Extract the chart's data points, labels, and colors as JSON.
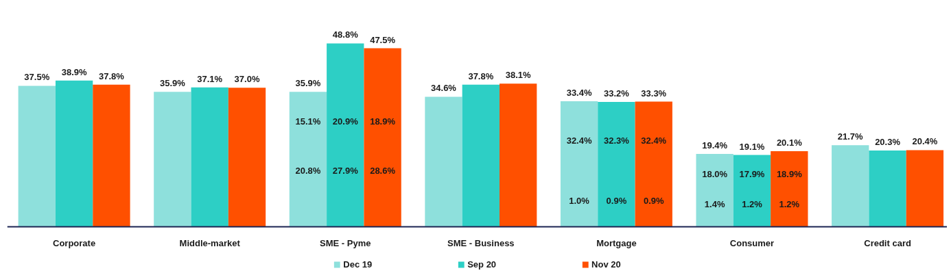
{
  "chart_data": {
    "type": "bar",
    "categories": [
      "Corporate",
      "Middle-market",
      "SME - Pyme",
      "SME - Business",
      "Mortgage",
      "Consumer",
      "Credit card"
    ],
    "series": [
      {
        "name": "Dec 19",
        "color": "#8ee0dc",
        "values": [
          37.5,
          35.9,
          35.9,
          34.6,
          33.4,
          19.4,
          21.7
        ],
        "value_labels": [
          "37.5%",
          "35.9%",
          "35.9%",
          "34.6%",
          "33.4%",
          "19.4%",
          "21.7%"
        ]
      },
      {
        "name": "Sep 20",
        "color": "#2dcfc5",
        "values": [
          38.9,
          37.1,
          48.8,
          37.8,
          33.2,
          19.1,
          20.3
        ],
        "value_labels": [
          "38.9%",
          "37.1%",
          "48.8%",
          "37.8%",
          "33.2%",
          "19.1%",
          "20.3%"
        ]
      },
      {
        "name": "Nov 20",
        "color": "#ff5000",
        "values": [
          37.8,
          37.0,
          47.5,
          38.1,
          33.3,
          20.1,
          20.4
        ],
        "value_labels": [
          "37.8%",
          "37.0%",
          "47.5%",
          "38.1%",
          "33.3%",
          "20.1%",
          "20.4%"
        ]
      }
    ],
    "annotations": [
      "15.1%",
      "20.9%",
      "18.9%",
      "20.8%",
      "27.9%",
      "28.6%",
      "32.4%",
      "32.3%",
      "32.4%",
      "1.0%",
      "0.9%",
      "0.9%",
      "18.0%",
      "17.9%",
      "18.9%",
      "1.4%",
      "1.2%",
      "1.2%"
    ],
    "legend": "bottom",
    "tick_labels": "x"
  }
}
